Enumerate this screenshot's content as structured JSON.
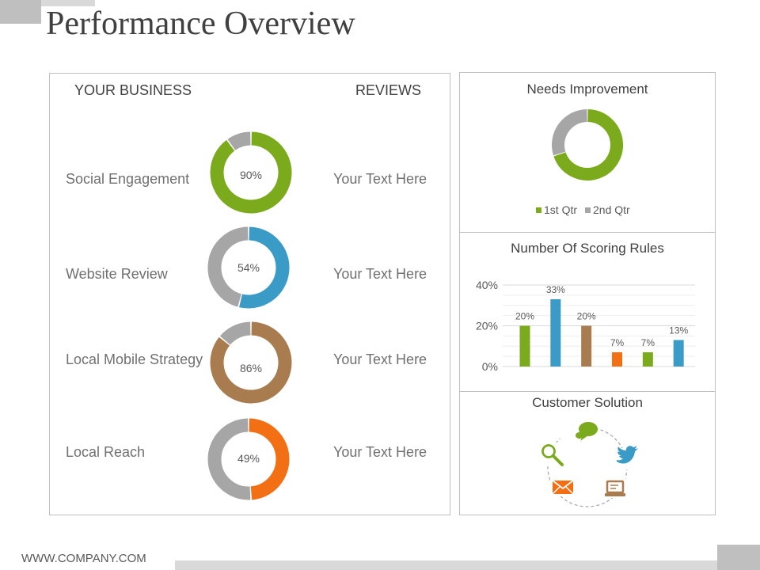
{
  "title": "Performance Overview",
  "footer": {
    "url": "WWW.COMPANY.COM"
  },
  "left_panel": {
    "col_business": "YOUR BUSINESS",
    "col_reviews": "REVIEWS",
    "rows": [
      {
        "label": "Social Engagement",
        "percent_label": "90%",
        "value": 90,
        "color": "#7bab1c",
        "review": "Your Text Here"
      },
      {
        "label": "Website Review",
        "percent_label": "54%",
        "value": 54,
        "color": "#3a9bc6",
        "review": "Your Text Here"
      },
      {
        "label": "Local Mobile Strategy",
        "percent_label": "86%",
        "value": 86,
        "color": "#a87c4f",
        "review": "Your Text Here"
      },
      {
        "label": "Local Reach",
        "percent_label": "49%",
        "value": 49,
        "color": "#f36f13",
        "review": "Your Text Here"
      }
    ],
    "remainder_color": "#a6a6a6"
  },
  "needs_improvement": {
    "title": "Needs Improvement",
    "legend": [
      {
        "name": "1st Qtr",
        "color": "#7bab1c"
      },
      {
        "name": "2nd Qtr",
        "color": "#a6a6a6"
      }
    ]
  },
  "scoring_rules": {
    "title": "Number Of Scoring Rules"
  },
  "customer_solution": {
    "title": "Customer Solution",
    "icons": [
      "chat-bubble-icon",
      "twitter-bird-icon",
      "laptop-icon",
      "envelope-icon",
      "magnifier-icon"
    ],
    "colors": {
      "chat": "#7bab1c",
      "twitter": "#3a9bc6",
      "laptop": "#a87c4f",
      "mail": "#f36f13",
      "search": "#7bab1c"
    }
  },
  "chart_data": [
    {
      "type": "pie",
      "title": "Needs Improvement",
      "categories": [
        "1st Qtr",
        "2nd Qtr"
      ],
      "values": [
        70,
        30
      ],
      "colors": [
        "#7bab1c",
        "#a6a6a6"
      ],
      "legend": "bottom"
    },
    {
      "type": "bar",
      "title": "Number Of Scoring Rules",
      "values": [
        20,
        33,
        20,
        7,
        7,
        13
      ],
      "data_labels": [
        "20%",
        "33%",
        "20%",
        "7%",
        "7%",
        "13%"
      ],
      "colors": [
        "#7bab1c",
        "#3a9bc6",
        "#a87c4f",
        "#f36f13",
        "#7bab1c",
        "#3a9bc6"
      ],
      "ylim": [
        0,
        40
      ],
      "yticks": [
        "0%",
        "20%",
        "40%"
      ],
      "grid": true
    }
  ]
}
